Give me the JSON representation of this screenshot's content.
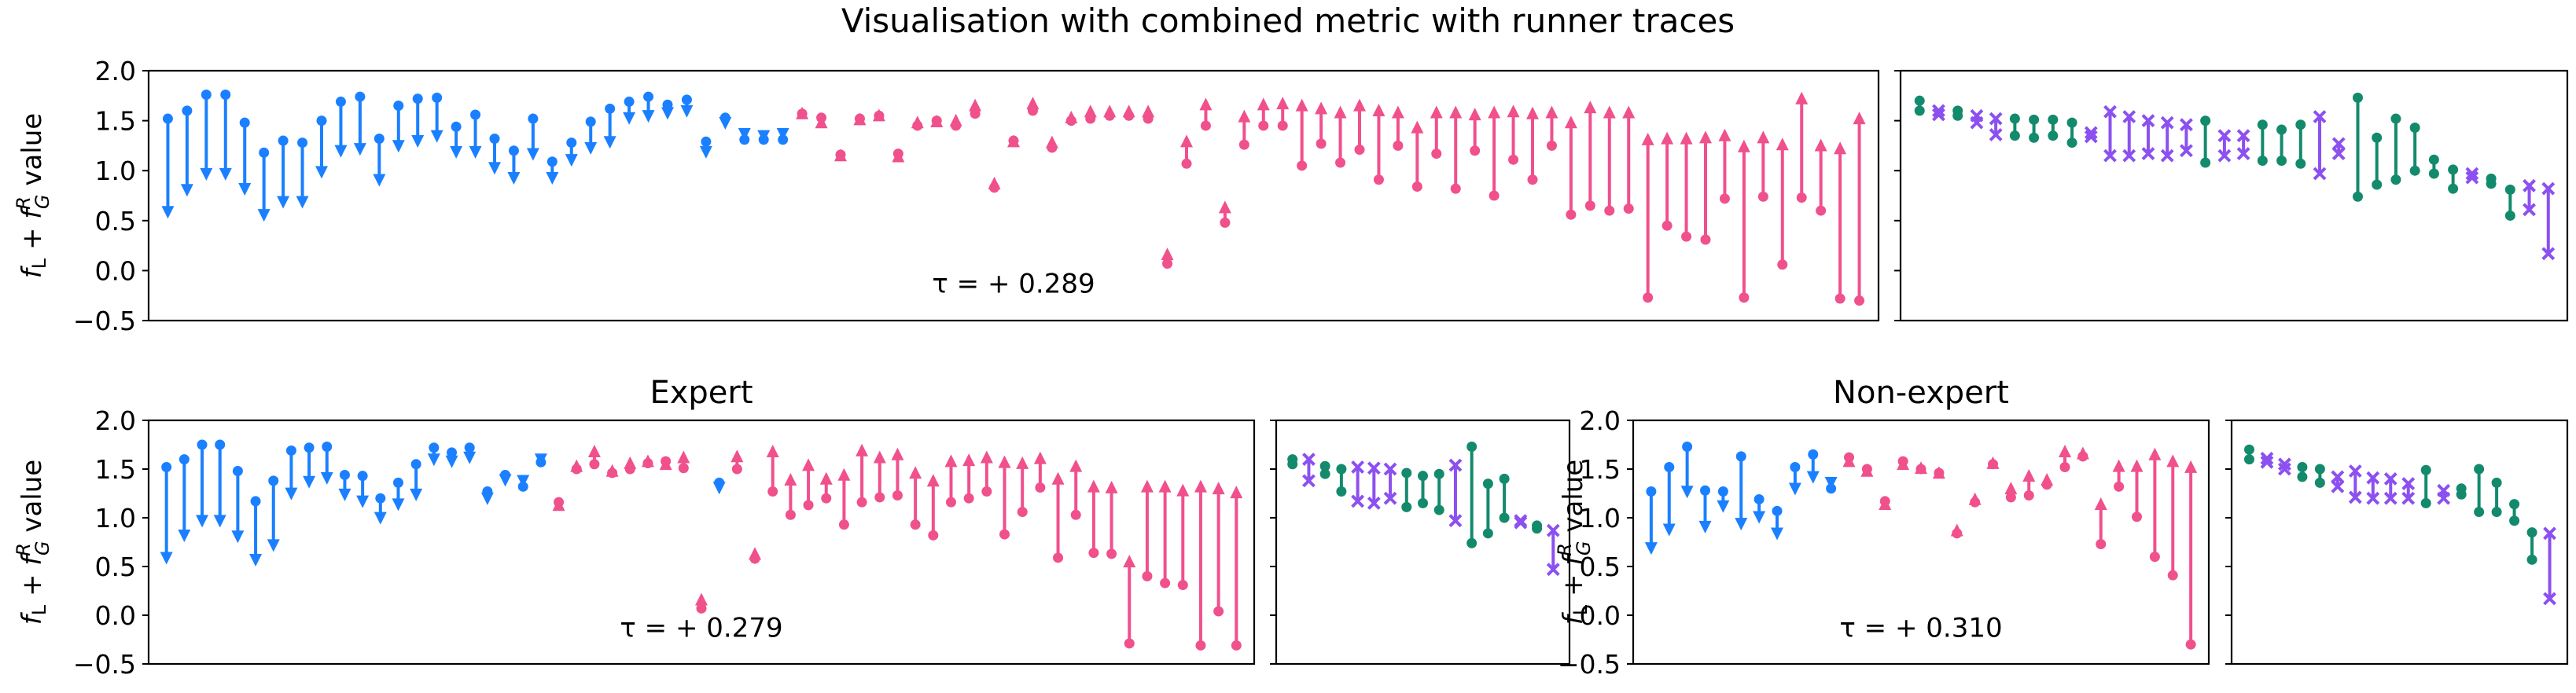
{
  "title": "Visualisation with combined metric with runner traces",
  "ylabel": "$f_L + f_G^R$ value",
  "ylabel_parts": {
    "f1": "f",
    "s1": "L",
    "plus": " + ",
    "f2": "f",
    "sup2": "R",
    "sub2": "G",
    "rest": " value"
  },
  "colors": {
    "down": "#1a80ff",
    "up": "#f0508c",
    "green": "#138a6c",
    "purple": "#8c50f0"
  },
  "chart_data": [
    {
      "type": "dumbbell",
      "panel": "top-main",
      "title": "",
      "ylim": [
        -0.5,
        2.0
      ],
      "yticks": [
        "−0.5",
        "0.0",
        "0.5",
        "1.0",
        "1.5",
        "2.0"
      ],
      "annotation": "τ = + 0.289",
      "pairs": [
        [
          1.52,
          0.52
        ],
        [
          1.6,
          0.74
        ],
        [
          1.76,
          0.9
        ],
        [
          1.76,
          0.9
        ],
        [
          1.48,
          0.75
        ],
        [
          1.18,
          0.49
        ],
        [
          1.3,
          0.62
        ],
        [
          1.28,
          0.62
        ],
        [
          1.5,
          0.92
        ],
        [
          1.69,
          1.13
        ],
        [
          1.74,
          1.15
        ],
        [
          1.32,
          0.84
        ],
        [
          1.65,
          1.18
        ],
        [
          1.72,
          1.23
        ],
        [
          1.73,
          1.28
        ],
        [
          1.44,
          1.12
        ],
        [
          1.56,
          1.12
        ],
        [
          1.32,
          0.96
        ],
        [
          1.2,
          0.86
        ],
        [
          1.52,
          1.1
        ],
        [
          1.09,
          0.86
        ],
        [
          1.28,
          1.04
        ],
        [
          1.49,
          1.16
        ],
        [
          1.62,
          1.22
        ],
        [
          1.69,
          1.46
        ],
        [
          1.74,
          1.48
        ],
        [
          1.66,
          1.51
        ],
        [
          1.71,
          1.53
        ],
        [
          1.29,
          1.12
        ],
        [
          1.53,
          1.41
        ],
        [
          1.31,
          1.3
        ],
        [
          1.31,
          1.28
        ],
        [
          1.31,
          1.3
        ],
        [
          1.57,
          1.64
        ],
        [
          1.53,
          1.55
        ],
        [
          1.16,
          1.22
        ],
        [
          1.52,
          1.58
        ],
        [
          1.55,
          1.62
        ],
        [
          1.17,
          1.21
        ],
        [
          1.45,
          1.55
        ],
        [
          1.5,
          1.56
        ],
        [
          1.45,
          1.57
        ],
        [
          1.57,
          1.72
        ],
        [
          0.83,
          0.94
        ],
        [
          1.3,
          1.36
        ],
        [
          1.6,
          1.74
        ],
        [
          1.23,
          1.35
        ],
        [
          1.5,
          1.6
        ],
        [
          1.52,
          1.66
        ],
        [
          1.55,
          1.66
        ],
        [
          1.55,
          1.66
        ],
        [
          1.52,
          1.66
        ],
        [
          0.07,
          0.23
        ],
        [
          1.07,
          1.36
        ],
        [
          1.45,
          1.73
        ],
        [
          0.48,
          0.7
        ],
        [
          1.26,
          1.61
        ],
        [
          1.45,
          1.73
        ],
        [
          1.45,
          1.74
        ],
        [
          1.05,
          1.72
        ],
        [
          1.27,
          1.69
        ],
        [
          1.08,
          1.65
        ],
        [
          1.21,
          1.72
        ],
        [
          0.91,
          1.67
        ],
        [
          1.25,
          1.65
        ],
        [
          0.84,
          1.5
        ],
        [
          1.17,
          1.65
        ],
        [
          0.82,
          1.65
        ],
        [
          1.2,
          1.63
        ],
        [
          0.75,
          1.65
        ],
        [
          1.11,
          1.66
        ],
        [
          0.91,
          1.64
        ],
        [
          1.25,
          1.65
        ],
        [
          0.56,
          1.55
        ],
        [
          0.65,
          1.7
        ],
        [
          0.6,
          1.65
        ],
        [
          0.62,
          1.65
        ],
        [
          -0.27,
          1.38
        ],
        [
          0.45,
          1.39
        ],
        [
          0.34,
          1.39
        ],
        [
          0.31,
          1.4
        ],
        [
          0.72,
          1.42
        ],
        [
          -0.27,
          1.31
        ],
        [
          0.74,
          1.4
        ],
        [
          0.06,
          1.33
        ],
        [
          0.73,
          1.79
        ],
        [
          0.6,
          1.32
        ],
        [
          -0.28,
          1.29
        ],
        [
          -0.3,
          1.59
        ]
      ]
    },
    {
      "type": "dumbbell",
      "panel": "top-side",
      "ylim": [
        -0.5,
        2.0
      ],
      "pairs": [
        [
          "g",
          1.7,
          1.6
        ],
        [
          "p",
          1.6,
          1.56
        ],
        [
          "g",
          1.6,
          1.55
        ],
        [
          "p",
          1.55,
          1.48
        ],
        [
          "p",
          1.52,
          1.36
        ],
        [
          "g",
          1.52,
          1.35
        ],
        [
          "g",
          1.51,
          1.33
        ],
        [
          "g",
          1.51,
          1.35
        ],
        [
          "g",
          1.48,
          1.28
        ],
        [
          "p",
          1.38,
          1.34
        ],
        [
          "p",
          1.59,
          1.15
        ],
        [
          "p",
          1.54,
          1.15
        ],
        [
          "p",
          1.5,
          1.17
        ],
        [
          "p",
          1.48,
          1.15
        ],
        [
          "p",
          1.46,
          1.2
        ],
        [
          "g",
          1.5,
          1.08
        ],
        [
          "p",
          1.35,
          1.15
        ],
        [
          "p",
          1.35,
          1.17
        ],
        [
          "g",
          1.46,
          1.1
        ],
        [
          "g",
          1.41,
          1.1
        ],
        [
          "g",
          1.46,
          1.07
        ],
        [
          "p",
          1.54,
          0.97
        ],
        [
          "p",
          1.27,
          1.17
        ],
        [
          "g",
          1.73,
          0.74
        ],
        [
          "g",
          1.33,
          0.86
        ],
        [
          "g",
          1.52,
          0.91
        ],
        [
          "g",
          1.43,
          1.0
        ],
        [
          "g",
          1.11,
          0.97
        ],
        [
          "g",
          1.01,
          0.82
        ],
        [
          "p",
          0.97,
          0.93
        ],
        [
          "g",
          0.92,
          0.87
        ],
        [
          "g",
          0.81,
          0.55
        ],
        [
          "p",
          0.85,
          0.61
        ],
        [
          "p",
          0.82,
          0.17
        ]
      ]
    },
    {
      "type": "dumbbell",
      "panel": "expert-main",
      "title": "Expert",
      "ylim": [
        -0.5,
        2.0
      ],
      "yticks": [
        "−0.5",
        "0.0",
        "0.5",
        "1.0",
        "1.5",
        "2.0"
      ],
      "annotation": "τ = + 0.279",
      "pairs": [
        [
          1.52,
          0.52
        ],
        [
          1.6,
          0.75
        ],
        [
          1.75,
          0.9
        ],
        [
          1.75,
          0.9
        ],
        [
          1.48,
          0.74
        ],
        [
          1.17,
          0.5
        ],
        [
          1.38,
          0.65
        ],
        [
          1.69,
          1.18
        ],
        [
          1.72,
          1.3
        ],
        [
          1.73,
          1.34
        ],
        [
          1.44,
          1.17
        ],
        [
          1.43,
          1.1
        ],
        [
          1.2,
          0.93
        ],
        [
          1.36,
          1.07
        ],
        [
          1.55,
          1.17
        ],
        [
          1.72,
          1.53
        ],
        [
          1.67,
          1.51
        ],
        [
          1.72,
          1.55
        ],
        [
          1.27,
          1.13
        ],
        [
          1.44,
          1.32
        ],
        [
          1.32,
          1.31
        ],
        [
          1.57,
          1.53
        ],
        [
          1.16,
          1.2
        ],
        [
          1.5,
          1.6
        ],
        [
          1.55,
          1.75
        ],
        [
          1.46,
          1.55
        ],
        [
          1.5,
          1.63
        ],
        [
          1.56,
          1.65
        ],
        [
          1.58,
          1.62
        ],
        [
          1.51,
          1.69
        ],
        [
          0.07,
          0.23
        ],
        [
          1.36,
          1.24
        ],
        [
          1.5,
          1.7
        ],
        [
          0.58,
          0.7
        ],
        [
          1.27,
          1.75
        ],
        [
          1.03,
          1.46
        ],
        [
          1.13,
          1.61
        ],
        [
          1.2,
          1.47
        ],
        [
          0.93,
          1.51
        ],
        [
          1.16,
          1.76
        ],
        [
          1.21,
          1.69
        ],
        [
          1.23,
          1.72
        ],
        [
          0.93,
          1.53
        ],
        [
          0.82,
          1.45
        ],
        [
          1.16,
          1.65
        ],
        [
          1.2,
          1.66
        ],
        [
          1.27,
          1.69
        ],
        [
          0.83,
          1.64
        ],
        [
          1.06,
          1.63
        ],
        [
          1.31,
          1.68
        ],
        [
          0.59,
          1.47
        ],
        [
          1.03,
          1.6
        ],
        [
          0.64,
          1.39
        ],
        [
          0.63,
          1.38
        ],
        [
          -0.29,
          0.62
        ],
        [
          0.4,
          1.39
        ],
        [
          0.33,
          1.39
        ],
        [
          0.31,
          1.35
        ],
        [
          -0.31,
          1.39
        ],
        [
          0.04,
          1.37
        ],
        [
          -0.31,
          1.33
        ]
      ]
    },
    {
      "type": "dumbbell",
      "panel": "expert-side",
      "ylim": [
        -0.5,
        2.0
      ],
      "pairs": [
        [
          "g",
          1.6,
          1.55
        ],
        [
          "p",
          1.6,
          1.38
        ],
        [
          "g",
          1.53,
          1.45
        ],
        [
          "g",
          1.5,
          1.27
        ],
        [
          "p",
          1.52,
          1.17
        ],
        [
          "p",
          1.51,
          1.15
        ],
        [
          "p",
          1.5,
          1.2
        ],
        [
          "g",
          1.46,
          1.11
        ],
        [
          "g",
          1.43,
          1.15
        ],
        [
          "g",
          1.45,
          1.08
        ],
        [
          "p",
          1.54,
          0.97
        ],
        [
          "g",
          1.73,
          0.74
        ],
        [
          "g",
          1.35,
          0.84
        ],
        [
          "g",
          1.4,
          1.0
        ],
        [
          "p",
          0.97,
          0.95
        ],
        [
          "g",
          0.92,
          0.89
        ],
        [
          "p",
          0.87,
          0.47
        ]
      ]
    },
    {
      "type": "dumbbell",
      "panel": "nonexpert-main",
      "title": "Non-expert",
      "ylim": [
        -0.5,
        2.0
      ],
      "yticks": [
        "−0.5",
        "0.0",
        "0.5",
        "1.0",
        "1.5",
        "2.0"
      ],
      "annotation": "τ = + 0.310",
      "pairs": [
        [
          1.27,
          0.62
        ],
        [
          1.52,
          0.81
        ],
        [
          1.73,
          1.2
        ],
        [
          1.28,
          0.84
        ],
        [
          1.27,
          1.05
        ],
        [
          1.63,
          0.87
        ],
        [
          1.19,
          0.94
        ],
        [
          1.07,
          0.77
        ],
        [
          1.52,
          1.23
        ],
        [
          1.65,
          1.35
        ],
        [
          1.3,
          1.29
        ],
        [
          1.62,
          1.65
        ],
        [
          1.5,
          1.55
        ],
        [
          1.17,
          1.21
        ],
        [
          1.58,
          1.62
        ],
        [
          1.5,
          1.58
        ],
        [
          1.46,
          1.53
        ],
        [
          0.84,
          0.94
        ],
        [
          1.16,
          1.26
        ],
        [
          1.55,
          1.63
        ],
        [
          1.21,
          1.37
        ],
        [
          1.23,
          1.5
        ],
        [
          1.34,
          1.46
        ],
        [
          1.52,
          1.75
        ],
        [
          1.63,
          1.73
        ],
        [
          0.73,
          1.21
        ],
        [
          1.32,
          1.6
        ],
        [
          1.01,
          1.6
        ],
        [
          0.6,
          1.72
        ],
        [
          0.41,
          1.65
        ],
        [
          -0.3,
          1.59
        ]
      ]
    },
    {
      "type": "dumbbell",
      "panel": "nonexpert-side",
      "ylim": [
        -0.5,
        2.0
      ],
      "pairs": [
        [
          "g",
          1.7,
          1.6
        ],
        [
          "p",
          1.61,
          1.57
        ],
        [
          "p",
          1.55,
          1.5
        ],
        [
          "g",
          1.52,
          1.42
        ],
        [
          "g",
          1.5,
          1.36
        ],
        [
          "p",
          1.42,
          1.32
        ],
        [
          "p",
          1.48,
          1.21
        ],
        [
          "p",
          1.41,
          1.2
        ],
        [
          "p",
          1.4,
          1.2
        ],
        [
          "p",
          1.35,
          1.2
        ],
        [
          "g",
          1.49,
          1.15
        ],
        [
          "p",
          1.28,
          1.2
        ],
        [
          "g",
          1.3,
          1.24
        ],
        [
          "g",
          1.5,
          1.06
        ],
        [
          "g",
          1.36,
          1.06
        ],
        [
          "g",
          1.14,
          0.97
        ],
        [
          "g",
          0.85,
          0.57
        ],
        [
          "p",
          0.84,
          0.17
        ]
      ]
    }
  ]
}
